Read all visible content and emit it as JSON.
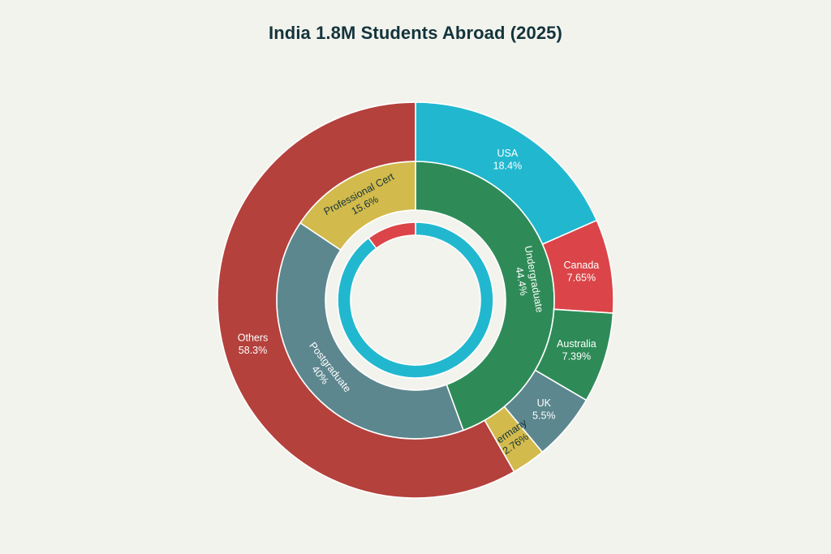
{
  "chart_data": {
    "type": "pie",
    "title": "India 1.8M Students Abroad (2025)",
    "rings": [
      {
        "name": "",
        "level": "inner",
        "slices": [
          {
            "label": "",
            "value": 89.7,
            "color": "#21b8cf"
          },
          {
            "label": "",
            "value": 10.3,
            "color": "#db4448"
          }
        ]
      },
      {
        "name": "",
        "level": "middle",
        "slices": [
          {
            "label": "Undergraduate",
            "value": 44.4,
            "display": "44.4%",
            "color": "#2e8b57"
          },
          {
            "label": "Postgraduate",
            "value": 40,
            "display": "40%",
            "color": "#5d878f"
          },
          {
            "label": "Professional Cert",
            "value": 15.6,
            "display": "15.6%",
            "color": "#d2ba4c"
          }
        ]
      },
      {
        "name": "",
        "level": "outer",
        "slices": [
          {
            "label": "USA",
            "value": 18.4,
            "display": "18.4%",
            "color": "#21b8cf"
          },
          {
            "label": "Canada",
            "value": 7.65,
            "display": "7.65%",
            "color": "#db4448"
          },
          {
            "label": "Australia",
            "value": 7.39,
            "display": "7.39%",
            "color": "#2e8b57"
          },
          {
            "label": "UK",
            "value": 5.5,
            "display": "5.5%",
            "color": "#5d878f"
          },
          {
            "label": "Germany",
            "value": 2.76,
            "display": "2.76%",
            "color": "#d2ba4c"
          },
          {
            "label": "Others",
            "value": 58.3,
            "display": "58.3%",
            "color": "#b4413c"
          }
        ]
      }
    ],
    "legend": "none",
    "background": "#f3f3ee"
  }
}
